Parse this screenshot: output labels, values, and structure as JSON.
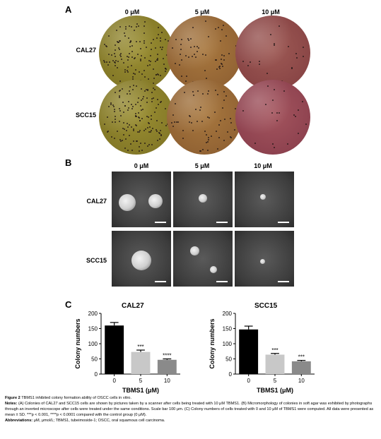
{
  "panel_a": {
    "letter": "A",
    "columns": [
      "0 μM",
      "5 μM",
      "10 μM"
    ],
    "rows": [
      "CAL27",
      "SCC15"
    ]
  },
  "panel_b": {
    "letter": "B",
    "columns": [
      "0 μM",
      "5 μM",
      "10 μM"
    ],
    "rows": [
      "CAL27",
      "SCC15"
    ]
  },
  "panel_c": {
    "letter": "C"
  },
  "chart_data": [
    {
      "type": "bar",
      "title": "CAL27",
      "xlabel": "TBMS1 (μM)",
      "ylabel": "Colony numbers",
      "categories": [
        "0",
        "5",
        "10"
      ],
      "values": [
        160,
        73,
        47
      ],
      "errors": [
        10,
        6,
        3
      ],
      "annotations": [
        "",
        "***",
        "****"
      ],
      "ylim": [
        0,
        200
      ],
      "yticks": [
        0,
        50,
        100,
        150,
        200
      ],
      "bar_colors": [
        "#000000",
        "#c8c8c8",
        "#8a8a8a"
      ]
    },
    {
      "type": "bar",
      "title": "SCC15",
      "xlabel": "TBMS1 (μM)",
      "ylabel": "Colony numbers",
      "categories": [
        "0",
        "5",
        "10"
      ],
      "values": [
        147,
        64,
        42
      ],
      "errors": [
        11,
        4,
        3
      ],
      "annotations": [
        "",
        "***",
        "***"
      ],
      "ylim": [
        0,
        200
      ],
      "yticks": [
        0,
        50,
        100,
        150,
        200
      ],
      "bar_colors": [
        "#000000",
        "#c8c8c8",
        "#8a8a8a"
      ]
    }
  ],
  "caption": {
    "figure": "Figure 2",
    "title": "TBMS1 inhibited colony formation ability of OSCC cells in vitro.",
    "notes_label": "Notes:",
    "notes": "(A) Colonies of CAL27 and SCC15 cells are shown by pictures taken by a scanner after cells being treated with 10 μM TBMS1. (B) Micromorphology of colonies in soft agar was exhibited by photographs through an inverted microscope after cells were treated under the same conditions. Scale bar 100 μm. (C) Colony numbers of cells treated with 0 and 10 μM of TBMS1 were computed. All data were presented as mean ± SD. ***p < 0.001, ****p < 0.0001 compared with the control group (0 μM).",
    "abbr_label": "Abbreviations:",
    "abbr": "μM, μmol/L; TBMS1, tubeimoside-1; OSCC, oral squamous cell carcinoma."
  },
  "colors": {
    "dish_0": "#8c7f2a",
    "dish_5": "#9a6a3a",
    "dish_10": "#8e4a4a"
  }
}
